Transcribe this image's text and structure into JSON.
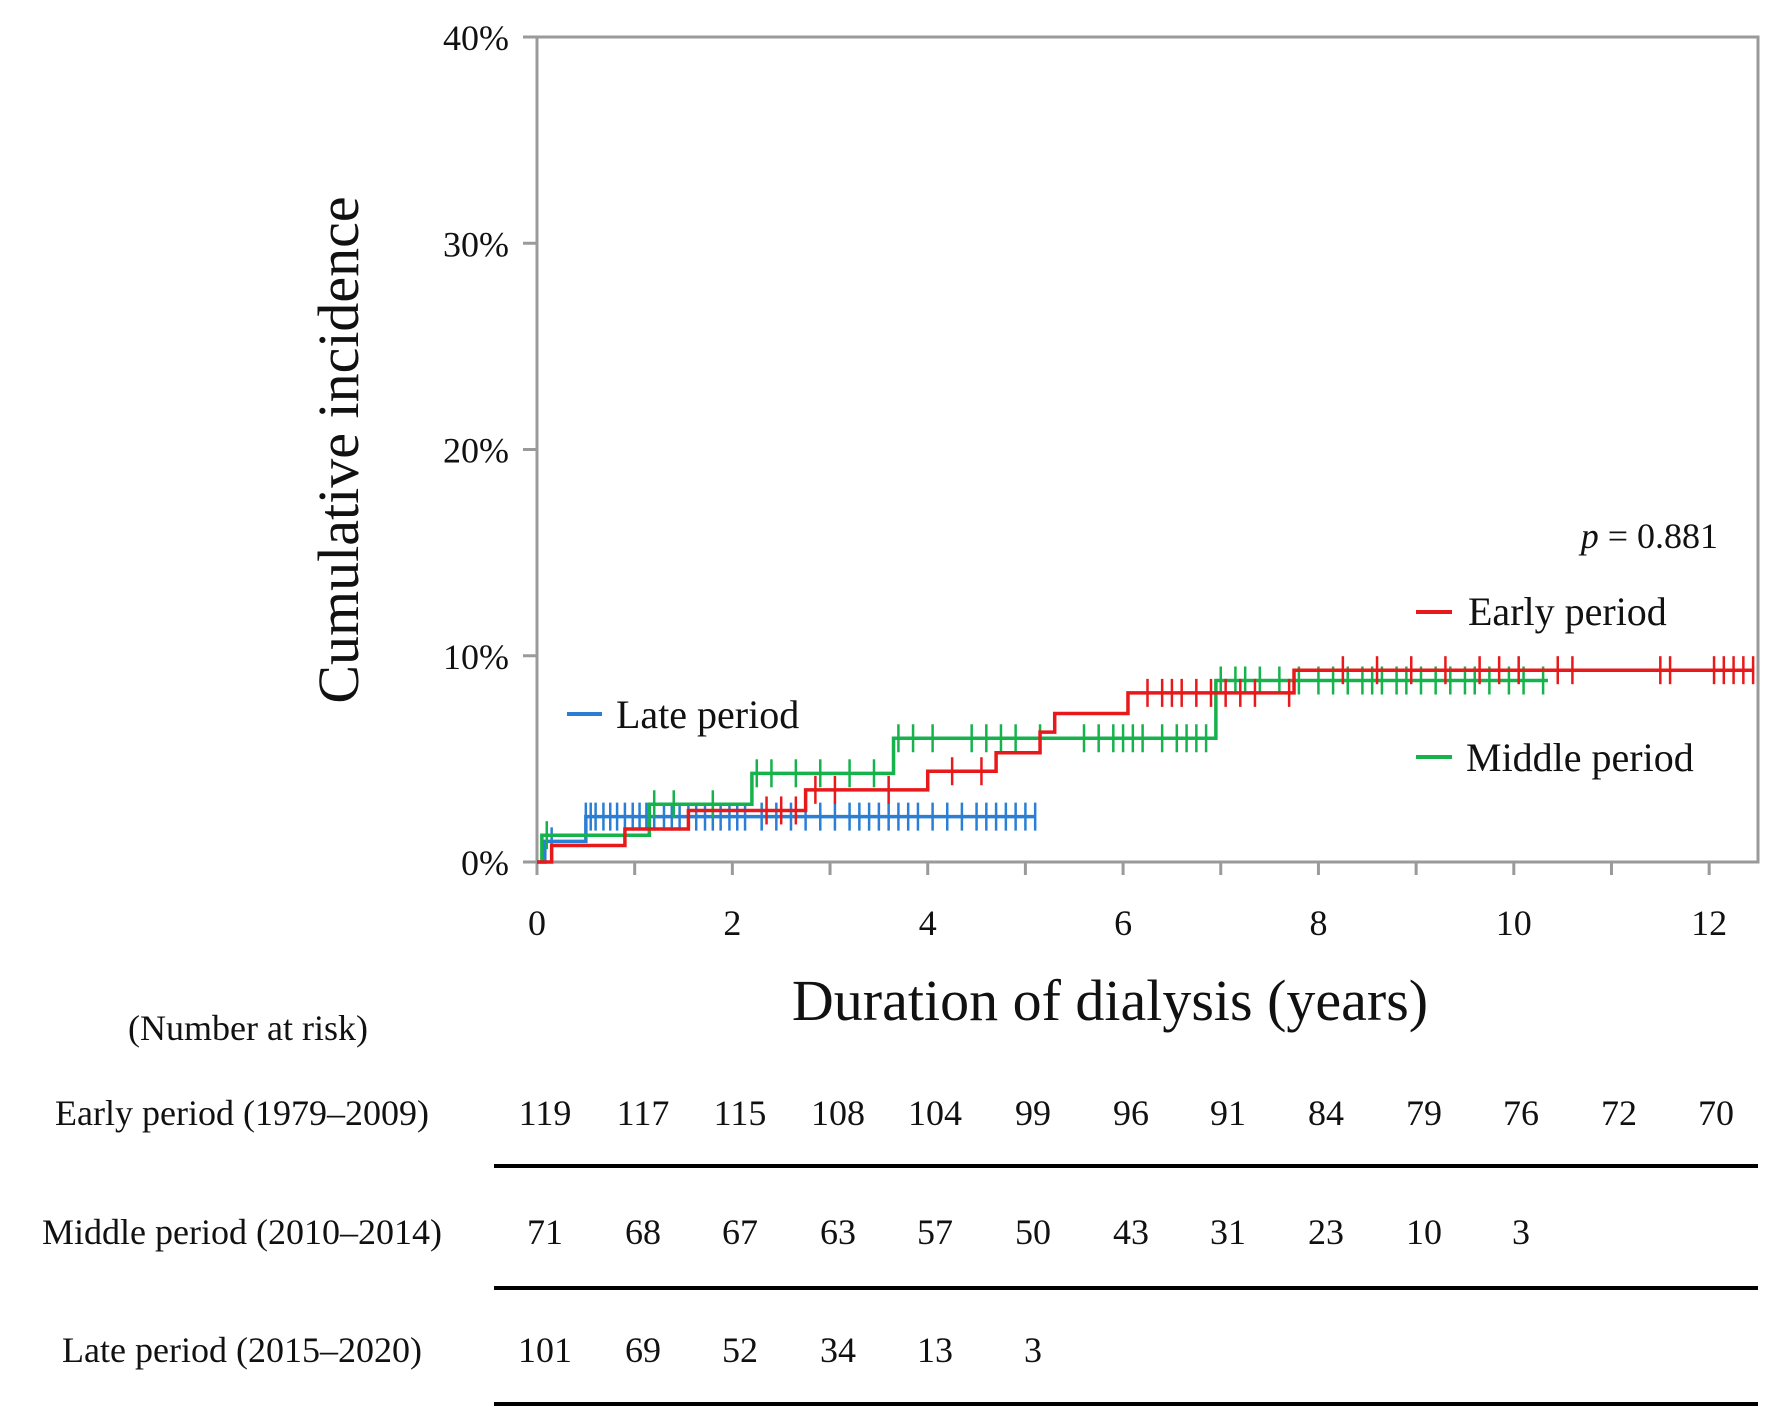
{
  "chart_data": {
    "type": "line",
    "subtype": "kaplan-meier-step",
    "title": "",
    "xlabel": "Duration of dialysis (years)",
    "ylabel": "Cumulative incidence",
    "xlim": [
      0,
      12.5
    ],
    "ylim": [
      0,
      40
    ],
    "x_ticks": [
      0,
      2,
      4,
      6,
      8,
      10,
      12
    ],
    "x_tick_labels": [
      "0",
      "2",
      "4",
      "6",
      "8",
      "10",
      "12"
    ],
    "y_ticks": [
      0,
      10,
      20,
      30,
      40
    ],
    "y_tick_labels": [
      "0%",
      "10%",
      "20%",
      "30%",
      "40%"
    ],
    "grid": false,
    "annotation": {
      "p_label": "p",
      "p_value": " = 0.881"
    },
    "series": [
      {
        "name": "Early period",
        "color": "#e8191b",
        "steps": [
          [
            0,
            0
          ],
          [
            0.15,
            0.8
          ],
          [
            0.9,
            1.6
          ],
          [
            1.55,
            2.5
          ],
          [
            2.75,
            3.5
          ],
          [
            4.0,
            4.4
          ],
          [
            4.7,
            5.3
          ],
          [
            5.15,
            6.3
          ],
          [
            5.3,
            7.2
          ],
          [
            6.05,
            8.2
          ],
          [
            7.75,
            9.3
          ],
          [
            12.45,
            9.3
          ]
        ],
        "censored": [
          2.35,
          2.5,
          2.65,
          2.85,
          3.05,
          3.6,
          4.25,
          4.55,
          6.25,
          6.4,
          6.5,
          6.6,
          6.75,
          6.9,
          7.05,
          7.2,
          7.35,
          7.7,
          8.25,
          8.6,
          8.95,
          9.3,
          9.65,
          9.85,
          10.05,
          10.45,
          10.6,
          11.5,
          11.6,
          12.05,
          12.15,
          12.25,
          12.35,
          12.45
        ]
      },
      {
        "name": "Middle period",
        "color": "#16b24b",
        "steps": [
          [
            0.05,
            0
          ],
          [
            0.05,
            1.3
          ],
          [
            1.15,
            2.8
          ],
          [
            2.2,
            4.3
          ],
          [
            3.65,
            6.0
          ],
          [
            6.95,
            8.8
          ],
          [
            10.35,
            8.8
          ]
        ],
        "censored": [
          0.1,
          1.2,
          1.4,
          1.8,
          2.25,
          2.4,
          2.65,
          2.9,
          3.2,
          3.45,
          3.7,
          3.85,
          4.05,
          4.45,
          4.6,
          4.75,
          4.9,
          5.15,
          5.6,
          5.75,
          5.9,
          6.0,
          6.1,
          6.2,
          6.4,
          6.55,
          6.65,
          6.75,
          6.85,
          7.0,
          7.15,
          7.25,
          7.4,
          7.6,
          7.8,
          8.0,
          8.15,
          8.3,
          8.45,
          8.55,
          8.65,
          8.8,
          8.9,
          9.05,
          9.2,
          9.35,
          9.5,
          9.6,
          9.75,
          9.95,
          10.1,
          10.3
        ]
      },
      {
        "name": "Late period",
        "color": "#2a7fd4",
        "steps": [
          [
            0,
            0
          ],
          [
            0.08,
            1.0
          ],
          [
            0.5,
            2.2
          ],
          [
            5.1,
            2.2
          ]
        ],
        "censored": [
          0.15,
          0.5,
          0.55,
          0.6,
          0.68,
          0.75,
          0.82,
          0.9,
          0.98,
          1.05,
          1.12,
          1.2,
          1.3,
          1.38,
          1.46,
          1.55,
          1.63,
          1.72,
          1.8,
          1.88,
          1.97,
          2.05,
          2.13,
          2.3,
          2.45,
          2.6,
          2.75,
          2.9,
          3.05,
          3.2,
          3.3,
          3.4,
          3.5,
          3.6,
          3.7,
          3.8,
          3.9,
          4.05,
          4.2,
          4.35,
          4.5,
          4.6,
          4.7,
          4.8,
          4.9,
          5.0,
          5.1
        ]
      }
    ],
    "risk_table": {
      "heading": "(Number at risk)",
      "rows": [
        {
          "label": "Early period (1979–2009)",
          "values": [
            "119",
            "117",
            "115",
            "108",
            "104",
            "99",
            "96",
            "91",
            "84",
            "79",
            "76",
            "72",
            "70"
          ]
        },
        {
          "label": "Middle period (2010–2014)",
          "values": [
            "71",
            "68",
            "67",
            "63",
            "57",
            "50",
            "43",
            "31",
            "23",
            "10",
            "3"
          ]
        },
        {
          "label": "Late period (2015–2020)",
          "values": [
            "101",
            "69",
            "52",
            "34",
            "13",
            "3"
          ]
        }
      ]
    }
  }
}
